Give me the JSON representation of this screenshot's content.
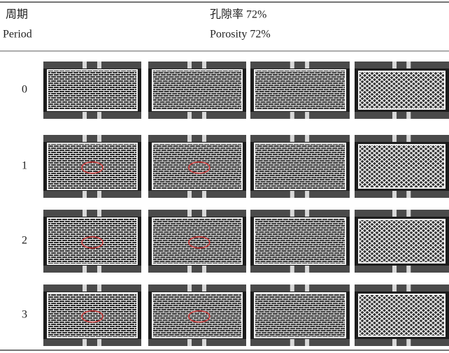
{
  "header": {
    "period": [
      "周期",
      "Period"
    ],
    "porosity": [
      "孔隙率 72%",
      "Porosity 72%"
    ]
  },
  "table": {
    "rows": [
      "0",
      "1",
      "2",
      "3"
    ]
  }
}
